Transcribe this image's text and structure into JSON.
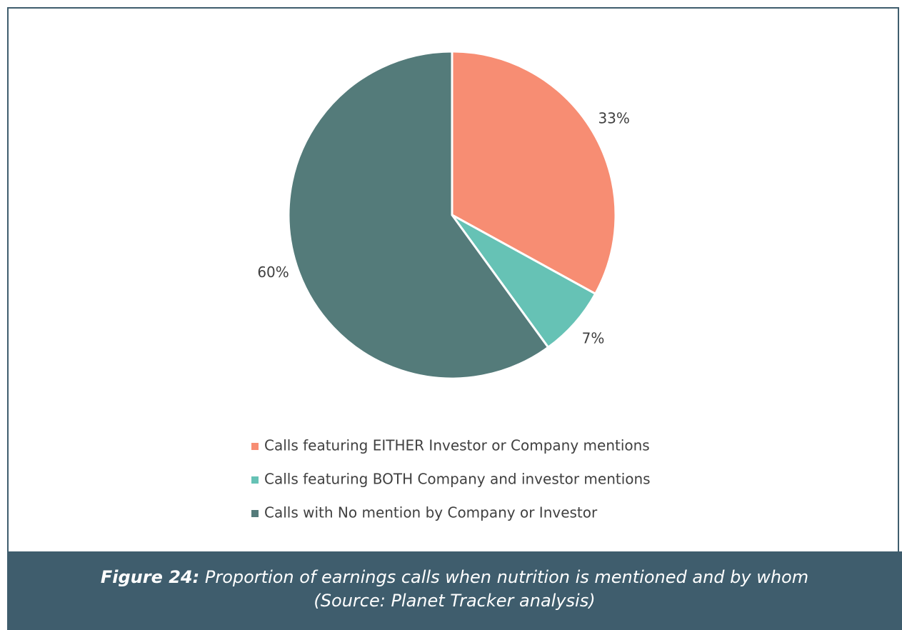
{
  "chart_data": {
    "type": "pie",
    "categories": [
      "Calls featuring EITHER Investor or Company mentions",
      "Calls featuring BOTH Company and investor mentions",
      "Calls with No mention by Company or Investor"
    ],
    "values": [
      33,
      7,
      60
    ],
    "value_labels": [
      "33%",
      "7%",
      "60%"
    ],
    "colors": [
      "#f78d73",
      "#66c2b5",
      "#547b7a"
    ],
    "legend": "bottom"
  },
  "caption": {
    "label": "Figure 24:",
    "text": "Proportion of earnings calls when nutrition is mentioned and by whom",
    "source": "(Source: Planet Tracker analysis)"
  }
}
